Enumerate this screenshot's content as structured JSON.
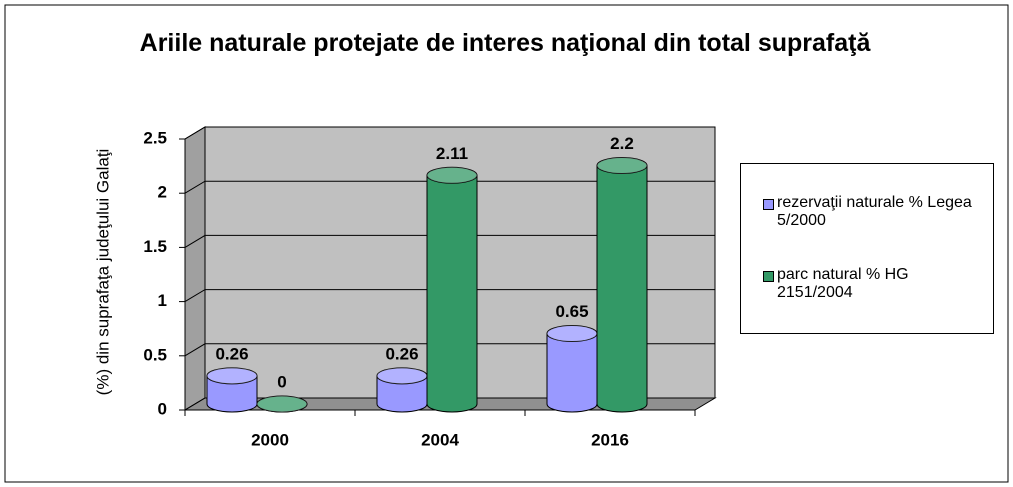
{
  "chart_data": {
    "type": "bar3d",
    "title": "Ariile naturale protejate de interes naţional din total suprafaţă",
    "y_label": "(%) din suprafaţa judeţului Galaţi",
    "categories": [
      "2000",
      "2004",
      "2016"
    ],
    "series": [
      {
        "name": "rezervaţii naturale % Legea 5/2000",
        "color": "#9999ff",
        "values": [
          0.26,
          0.26,
          0.65
        ]
      },
      {
        "name": "parc natural % HG 2151/2004",
        "color": "#339966",
        "values": [
          0,
          2.11,
          2.2
        ]
      }
    ],
    "ylim": [
      0,
      2.5
    ],
    "yticks": [
      0,
      0.5,
      1,
      1.5,
      2,
      2.5
    ],
    "grid": true,
    "legend": "right"
  }
}
